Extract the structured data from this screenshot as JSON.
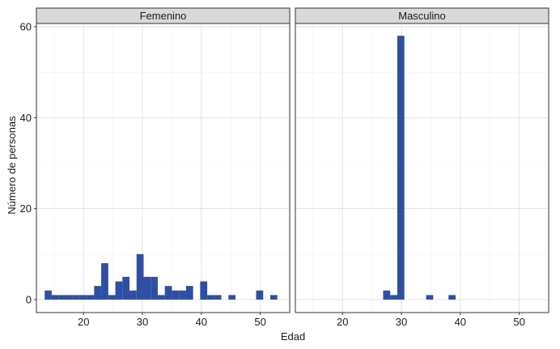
{
  "chart_data": {
    "type": "bar",
    "subtype": "faceted-histogram",
    "xlabel": "Edad",
    "ylabel": "Número de personas",
    "xlim": [
      12,
      55
    ],
    "ylim": [
      0,
      61
    ],
    "x_ticks": [
      20,
      30,
      40,
      50
    ],
    "y_ticks": [
      0,
      20,
      40,
      60
    ],
    "bin_width": 1.2,
    "bar_color": "#2f4fa2",
    "grid": true,
    "panels": [
      {
        "name": "Femenino",
        "bins": [
          {
            "x": 14.0,
            "y": 2
          },
          {
            "x": 15.2,
            "y": 1
          },
          {
            "x": 16.4,
            "y": 1
          },
          {
            "x": 17.6,
            "y": 1
          },
          {
            "x": 18.8,
            "y": 1
          },
          {
            "x": 20.0,
            "y": 1
          },
          {
            "x": 21.2,
            "y": 1
          },
          {
            "x": 22.4,
            "y": 3
          },
          {
            "x": 23.6,
            "y": 8
          },
          {
            "x": 24.8,
            "y": 1
          },
          {
            "x": 26.0,
            "y": 4
          },
          {
            "x": 27.2,
            "y": 5
          },
          {
            "x": 28.4,
            "y": 2
          },
          {
            "x": 29.6,
            "y": 10
          },
          {
            "x": 30.8,
            "y": 5
          },
          {
            "x": 32.0,
            "y": 5
          },
          {
            "x": 33.2,
            "y": 1
          },
          {
            "x": 34.4,
            "y": 3
          },
          {
            "x": 35.6,
            "y": 2
          },
          {
            "x": 36.8,
            "y": 2
          },
          {
            "x": 38.0,
            "y": 3
          },
          {
            "x": 40.4,
            "y": 4
          },
          {
            "x": 41.6,
            "y": 1
          },
          {
            "x": 42.8,
            "y": 1
          },
          {
            "x": 45.2,
            "y": 1
          },
          {
            "x": 49.9,
            "y": 2
          },
          {
            "x": 52.3,
            "y": 1
          }
        ]
      },
      {
        "name": "Masculino",
        "bins": [
          {
            "x": 27.5,
            "y": 2
          },
          {
            "x": 28.7,
            "y": 1
          },
          {
            "x": 29.9,
            "y": 58
          },
          {
            "x": 34.8,
            "y": 1
          },
          {
            "x": 38.6,
            "y": 1
          }
        ]
      }
    ]
  }
}
